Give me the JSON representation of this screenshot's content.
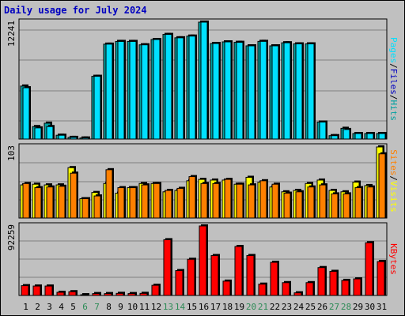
{
  "title": "Daily usage for July 2024",
  "colors": {
    "hits": "#00c0ff",
    "files": "#00a0a0",
    "pages": "#00e0ff",
    "visits": "#ffff00",
    "sites": "#ff8000",
    "kbytes": "#ff0000",
    "weekday_label": "#000000",
    "weekend_label": "#2e8b57"
  },
  "chart_data": [
    {
      "type": "bar",
      "title": "Daily usage for July 2024",
      "categories": [
        "1",
        "2",
        "3",
        "4",
        "5",
        "6",
        "7",
        "8",
        "9",
        "10",
        "11",
        "12",
        "13",
        "14",
        "15",
        "16",
        "17",
        "18",
        "19",
        "20",
        "21",
        "22",
        "23",
        "24",
        "25",
        "26",
        "27",
        "28",
        "29",
        "30",
        "31"
      ],
      "weekend_days": [
        "6",
        "7",
        "13",
        "14",
        "20",
        "21",
        "27",
        "28"
      ],
      "ymax_label": "12241",
      "legend": [
        {
          "text": "Pages",
          "color": "#00e0ff"
        },
        {
          "text": "/",
          "color": "#000000"
        },
        {
          "text": "Files",
          "color": "#0000c0"
        },
        {
          "text": "/",
          "color": "#000000"
        },
        {
          "text": "Hits",
          "color": "#00a0a0"
        }
      ],
      "series": [
        {
          "name": "Hits",
          "color": "#00a0a0",
          "values": [
            5548,
            1305,
            1661,
            398,
            172,
            110,
            6569,
            9935,
            10220,
            10220,
            9866,
            10420,
            10954,
            10600,
            10778,
            12241,
            10003,
            10173,
            10125,
            9759,
            10226,
            9759,
            10078,
            9963,
            9963,
            1778,
            355,
            1125,
            578,
            578,
            578
          ]
        },
        {
          "name": "Pages",
          "color": "#00e0ff",
          "values": [
            5370,
            1169,
            1305,
            398,
            172,
            110,
            6569,
            9935,
            10220,
            10220,
            9866,
            10420,
            10954,
            10600,
            10778,
            12241,
            10003,
            10173,
            10125,
            9759,
            10226,
            9759,
            10078,
            9963,
            9963,
            1778,
            355,
            1000,
            578,
            578,
            578
          ]
        }
      ]
    },
    {
      "type": "bar",
      "ymax_label": "103",
      "legend": [
        {
          "text": "Sites",
          "color": "#ff8000"
        },
        {
          "text": "/",
          "color": "#000000"
        },
        {
          "text": "Visits",
          "color": "#ffff00"
        }
      ],
      "series": [
        {
          "name": "Visits",
          "color": "#ffff00",
          "values": [
            48,
            49,
            48,
            48,
            73,
            28,
            37,
            50,
            36,
            44,
            50,
            50,
            38,
            40,
            54,
            56,
            55,
            55,
            49,
            59,
            52,
            45,
            38,
            40,
            50,
            55,
            40,
            38,
            52,
            47,
            103
          ]
        },
        {
          "name": "Sites",
          "color": "#ff8000",
          "values": [
            50,
            44,
            45,
            46,
            65,
            28,
            32,
            70,
            44,
            44,
            48,
            50,
            40,
            43,
            60,
            50,
            50,
            56,
            49,
            48,
            54,
            49,
            36,
            38,
            45,
            48,
            35,
            35,
            44,
            45,
            93
          ]
        }
      ]
    },
    {
      "type": "bar",
      "ymax_label": "92259",
      "legend": [
        {
          "text": "KBytes",
          "color": "#ff0000"
        }
      ],
      "series": [
        {
          "name": "KBytes",
          "color": "#ff0000",
          "values": [
            13000,
            12500,
            12500,
            4200,
            5000,
            1000,
            2500,
            2500,
            2800,
            2500,
            2800,
            13500,
            74000,
            33000,
            48000,
            92259,
            53000,
            19000,
            65000,
            53000,
            15000,
            44000,
            17000,
            3500,
            17000,
            37000,
            32000,
            20000,
            22000,
            70000,
            45000
          ]
        }
      ]
    }
  ]
}
